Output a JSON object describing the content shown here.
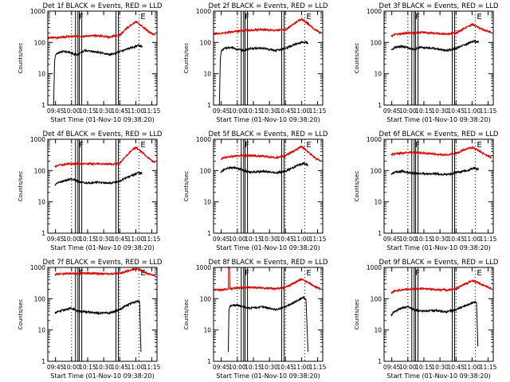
{
  "chart_data": [
    {
      "type": "line",
      "title": "Det 1f BLACK = Events, RED = LLD",
      "xlabel": "Start Time (01-Nov-10 09:38:20)",
      "ylabel": "Counts/sec",
      "yscale": "log",
      "ylim": [
        1,
        1000
      ],
      "xlim": [
        9.63,
        11.33
      ],
      "x_ticks": [
        "09:45",
        "10:00",
        "10:15",
        "10:30",
        "10:45",
        "11:00",
        "11:15"
      ],
      "y_ticks": [
        "1",
        "10",
        "100",
        "1000"
      ],
      "vlines_dotted": [
        10.0,
        10.75,
        11.05
      ],
      "vlines_double": [
        10.08,
        10.14,
        10.71
      ],
      "markers": [
        {
          "label": "F",
          "x": 10.09
        },
        {
          "label": "E",
          "x": 11.05
        }
      ],
      "series": [
        {
          "color": "#e00000",
          "x": [
            9.63,
            9.8,
            10.0,
            10.2,
            10.4,
            10.6,
            10.75,
            10.9,
            11.0,
            11.1,
            11.2,
            11.3
          ],
          "y": [
            140,
            145,
            155,
            160,
            165,
            150,
            175,
            330,
            460,
            330,
            220,
            170
          ]
        },
        {
          "color": "#000000",
          "x": [
            9.72,
            9.735,
            9.75,
            9.8,
            9.9,
            10.0,
            10.1,
            10.2,
            10.4,
            10.6,
            10.75,
            10.85,
            10.95,
            11.03,
            11.1
          ],
          "y": [
            1,
            25,
            40,
            48,
            52,
            45,
            40,
            55,
            50,
            40,
            50,
            60,
            70,
            80,
            75
          ]
        }
      ]
    },
    {
      "type": "line",
      "title": "Det 2f BLACK = Events, RED = LLD",
      "xlabel": "Start Time (01-Nov-10 09:38:20)",
      "ylabel": "Counts/sec",
      "yscale": "log",
      "ylim": [
        1,
        1000
      ],
      "xlim": [
        9.63,
        11.33
      ],
      "x_ticks": [
        "09:45",
        "10:00",
        "10:15",
        "10:30",
        "10:45",
        "11:00",
        "11:15"
      ],
      "y_ticks": [
        "1",
        "10",
        "100",
        "1000"
      ],
      "vlines_dotted": [
        10.0,
        10.75,
        11.05
      ],
      "vlines_double": [
        10.08,
        10.14,
        10.71
      ],
      "markers": [
        {
          "label": "F",
          "x": 10.09
        },
        {
          "label": "E",
          "x": 11.05
        }
      ],
      "series": [
        {
          "color": "#e00000",
          "x": [
            9.63,
            9.8,
            10.0,
            10.2,
            10.4,
            10.6,
            10.75,
            10.9,
            11.0,
            11.1,
            11.2,
            11.3
          ],
          "y": [
            190,
            200,
            230,
            250,
            260,
            240,
            260,
            420,
            560,
            400,
            260,
            200
          ]
        },
        {
          "color": "#000000",
          "x": [
            9.72,
            9.735,
            9.75,
            9.8,
            9.9,
            10.0,
            10.1,
            10.2,
            10.4,
            10.6,
            10.75,
            10.85,
            10.95,
            11.03,
            11.1
          ],
          "y": [
            1,
            30,
            55,
            65,
            70,
            60,
            55,
            65,
            65,
            55,
            65,
            80,
            95,
            105,
            95
          ]
        }
      ]
    },
    {
      "type": "line",
      "title": "Det 3f BLACK = Events, RED = LLD",
      "xlabel": "Start Time (01-Nov-10 09:38:20)",
      "ylabel": "Counts/sec",
      "yscale": "log",
      "ylim": [
        1,
        1000
      ],
      "xlim": [
        9.63,
        11.33
      ],
      "x_ticks": [
        "09:45",
        "10:00",
        "10:15",
        "10:30",
        "10:45",
        "11:00",
        "11:15"
      ],
      "y_ticks": [
        "1",
        "10",
        "100",
        "1000"
      ],
      "vlines_dotted": [
        10.0,
        10.75,
        11.05
      ],
      "vlines_double": [
        10.08,
        10.14,
        10.71
      ],
      "markers": [
        {
          "label": "F",
          "x": 10.09
        },
        {
          "label": "E",
          "x": 11.05
        }
      ],
      "series": [
        {
          "color": "#e00000",
          "x": [
            9.74,
            9.8,
            10.0,
            10.2,
            10.4,
            10.6,
            10.75,
            10.9,
            11.0,
            11.1,
            11.2,
            11.3
          ],
          "y": [
            150,
            180,
            200,
            210,
            200,
            185,
            200,
            300,
            380,
            300,
            240,
            210
          ]
        },
        {
          "color": "#000000",
          "x": [
            9.74,
            9.8,
            9.9,
            10.0,
            10.1,
            10.2,
            10.4,
            10.6,
            10.75,
            10.85,
            10.95,
            11.03,
            11.1
          ],
          "y": [
            55,
            70,
            75,
            68,
            60,
            70,
            65,
            55,
            65,
            80,
            95,
            110,
            100
          ]
        }
      ]
    },
    {
      "type": "line",
      "title": "Det 4f BLACK = Events, RED = LLD",
      "xlabel": "Start Time (01-Nov-10 09:38:20)",
      "ylabel": "Counts/sec",
      "yscale": "log",
      "ylim": [
        1,
        1000
      ],
      "xlim": [
        9.63,
        11.33
      ],
      "x_ticks": [
        "09:45",
        "10:00",
        "10:15",
        "10:30",
        "10:45",
        "11:00",
        "11:15"
      ],
      "y_ticks": [
        "1",
        "10",
        "100",
        "1000"
      ],
      "vlines_dotted": [
        10.0,
        10.75,
        11.05
      ],
      "vlines_double": [
        10.08,
        10.14,
        10.71
      ],
      "markers": [
        {
          "label": "F",
          "x": 10.09
        },
        {
          "label": "E",
          "x": 11.05
        }
      ],
      "series": [
        {
          "color": "#e00000",
          "x": [
            9.74,
            9.8,
            10.0,
            10.2,
            10.4,
            10.6,
            10.75,
            10.9,
            11.0,
            11.1,
            11.2,
            11.3
          ],
          "y": [
            130,
            150,
            165,
            165,
            165,
            160,
            170,
            380,
            560,
            380,
            250,
            180
          ]
        },
        {
          "color": "#000000",
          "x": [
            9.74,
            9.8,
            9.9,
            10.0,
            10.1,
            10.2,
            10.4,
            10.6,
            10.75,
            10.85,
            10.95,
            11.03,
            11.1
          ],
          "y": [
            35,
            42,
            48,
            55,
            45,
            40,
            42,
            40,
            45,
            60,
            70,
            85,
            80
          ]
        }
      ]
    },
    {
      "type": "line",
      "title": "Det 5f BLACK = Events, RED = LLD",
      "xlabel": "Start Time (01-Nov-10 09:38:20)",
      "ylabel": "Counts/sec",
      "yscale": "log",
      "ylim": [
        1,
        1000
      ],
      "xlim": [
        9.63,
        11.33
      ],
      "x_ticks": [
        "09:45",
        "10:00",
        "10:15",
        "10:30",
        "10:45",
        "11:00",
        "11:15"
      ],
      "y_ticks": [
        "1",
        "10",
        "100",
        "1000"
      ],
      "vlines_dotted": [
        10.0,
        10.75,
        11.05
      ],
      "vlines_double": [
        10.08,
        10.14,
        10.71
      ],
      "markers": [
        {
          "label": "F",
          "x": 10.09
        },
        {
          "label": "E",
          "x": 11.05
        }
      ],
      "series": [
        {
          "color": "#e00000",
          "x": [
            9.74,
            9.8,
            10.0,
            10.2,
            10.4,
            10.6,
            10.75,
            10.9,
            11.0,
            11.1,
            11.2,
            11.3
          ],
          "y": [
            240,
            260,
            300,
            300,
            290,
            260,
            300,
            450,
            600,
            400,
            260,
            200
          ]
        },
        {
          "color": "#000000",
          "x": [
            9.74,
            9.8,
            9.9,
            10.0,
            10.1,
            10.2,
            10.4,
            10.6,
            10.75,
            10.85,
            10.95,
            11.03,
            11.1
          ],
          "y": [
            90,
            110,
            125,
            120,
            100,
            90,
            95,
            85,
            95,
            120,
            150,
            170,
            150
          ]
        }
      ]
    },
    {
      "type": "line",
      "title": "Det 6f BLACK = Events, RED = LLD",
      "xlabel": "Start Time (01-Nov-10 09:38:20)",
      "ylabel": "Counts/sec",
      "yscale": "log",
      "ylim": [
        1,
        1000
      ],
      "xlim": [
        9.63,
        11.33
      ],
      "x_ticks": [
        "09:45",
        "10:00",
        "10:15",
        "10:30",
        "10:45",
        "11:00",
        "11:15"
      ],
      "y_ticks": [
        "1",
        "10",
        "100",
        "1000"
      ],
      "vlines_dotted": [
        10.0,
        10.75,
        11.05
      ],
      "vlines_double": [
        10.08,
        10.14,
        10.71
      ],
      "markers": [
        {
          "label": "F",
          "x": 10.09
        },
        {
          "label": "E",
          "x": 11.05
        }
      ],
      "series": [
        {
          "color": "#e00000",
          "x": [
            9.74,
            9.8,
            10.0,
            10.2,
            10.4,
            10.6,
            10.75,
            10.9,
            11.0,
            11.1,
            11.2,
            11.3
          ],
          "y": [
            330,
            340,
            380,
            370,
            340,
            320,
            360,
            480,
            560,
            430,
            330,
            260
          ]
        },
        {
          "color": "#000000",
          "x": [
            9.74,
            9.8,
            9.9,
            10.0,
            10.1,
            10.2,
            10.4,
            10.6,
            10.75,
            10.85,
            10.95,
            11.03,
            11.1
          ],
          "y": [
            75,
            90,
            95,
            88,
            80,
            80,
            80,
            75,
            85,
            95,
            105,
            120,
            110
          ]
        }
      ]
    },
    {
      "type": "line",
      "title": "Det 7f BLACK = Events, RED = LLD",
      "xlabel": "Start Time (01-Nov-10 09:38:20)",
      "ylabel": "Counts/sec",
      "yscale": "log",
      "ylim": [
        1,
        1000
      ],
      "xlim": [
        9.63,
        11.33
      ],
      "x_ticks": [
        "09:45",
        "10:00",
        "10:15",
        "10:30",
        "10:45",
        "11:00",
        "11:15"
      ],
      "y_ticks": [
        "1",
        "10",
        "100",
        "1000"
      ],
      "vlines_dotted": [
        10.0,
        10.75,
        11.05
      ],
      "vlines_double": [
        10.08,
        10.14,
        10.71
      ],
      "markers": [
        {
          "label": "F",
          "x": 10.09
        },
        {
          "label": "E",
          "x": 11.05
        }
      ],
      "series": [
        {
          "color": "#e00000",
          "x": [
            9.74,
            9.8,
            10.0,
            10.2,
            10.4,
            10.6,
            10.75,
            10.9,
            11.0,
            11.05,
            11.1,
            11.2,
            11.3
          ],
          "y": [
            600,
            620,
            640,
            650,
            640,
            620,
            650,
            800,
            900,
            850,
            760,
            620,
            560
          ]
        },
        {
          "color": "#000000",
          "x": [
            9.74,
            9.8,
            9.9,
            10.0,
            10.1,
            10.2,
            10.4,
            10.6,
            10.75,
            10.85,
            10.95,
            11.03,
            11.06,
            11.08
          ],
          "y": [
            35,
            40,
            45,
            50,
            40,
            38,
            35,
            35,
            45,
            60,
            75,
            85,
            80,
            2
          ]
        }
      ]
    },
    {
      "type": "line",
      "title": "Det 8f BLACK = Events, RED = LLD",
      "xlabel": "Start Time (01-Nov-10 09:38:20)",
      "ylabel": "Counts/sec",
      "yscale": "log",
      "ylim": [
        1,
        1000
      ],
      "xlim": [
        9.63,
        11.33
      ],
      "x_ticks": [
        "09:45",
        "10:00",
        "10:15",
        "10:30",
        "10:45",
        "11:00",
        "11:15"
      ],
      "y_ticks": [
        "1",
        "10",
        "100",
        "1000"
      ],
      "vlines_dotted": [
        10.0,
        10.75,
        11.05
      ],
      "vlines_double": [
        10.08,
        10.14,
        10.71
      ],
      "markers": [
        {
          "label": "F",
          "x": 10.09
        },
        {
          "label": "E",
          "x": 11.05
        }
      ],
      "series": [
        {
          "color": "#e00000",
          "x": [
            9.63,
            9.8,
            9.86,
            9.865,
            9.88,
            9.885,
            10.0,
            10.2,
            10.4,
            10.6,
            10.75,
            10.9,
            11.0,
            11.1,
            11.2,
            11.3
          ],
          "y": [
            190,
            200,
            200,
            1000,
            1000,
            210,
            220,
            230,
            220,
            210,
            230,
            330,
            420,
            330,
            250,
            200
          ]
        },
        {
          "color": "#000000",
          "x": [
            9.86,
            9.87,
            9.88,
            9.9,
            10.0,
            10.1,
            10.2,
            10.4,
            10.6,
            10.75,
            10.85,
            10.95,
            11.03,
            11.07,
            11.1
          ],
          "y": [
            2,
            40,
            55,
            60,
            62,
            55,
            50,
            55,
            45,
            55,
            70,
            90,
            110,
            95,
            2
          ]
        }
      ]
    },
    {
      "type": "line",
      "title": "Det 9f BLACK = Events, RED = LLD",
      "xlabel": "Start Time (01-Nov-10 09:38:20)",
      "ylabel": "Counts/sec",
      "yscale": "log",
      "ylim": [
        1,
        1000
      ],
      "xlim": [
        9.63,
        11.33
      ],
      "x_ticks": [
        "09:45",
        "10:00",
        "10:15",
        "10:30",
        "10:45",
        "11:00",
        "11:15"
      ],
      "y_ticks": [
        "1",
        "10",
        "100",
        "1000"
      ],
      "vlines_dotted": [
        10.0,
        10.75,
        11.05
      ],
      "vlines_double": [
        10.08,
        10.14,
        10.71
      ],
      "markers": [
        {
          "label": "F",
          "x": 10.09
        },
        {
          "label": "E",
          "x": 11.05
        }
      ],
      "series": [
        {
          "color": "#e00000",
          "x": [
            9.74,
            9.8,
            10.0,
            10.2,
            10.4,
            10.6,
            10.75,
            10.9,
            11.0,
            11.1,
            11.2,
            11.3
          ],
          "y": [
            150,
            180,
            200,
            210,
            200,
            190,
            210,
            300,
            380,
            320,
            260,
            210
          ]
        },
        {
          "color": "#000000",
          "x": [
            9.74,
            9.8,
            9.9,
            10.0,
            10.1,
            10.2,
            10.4,
            10.6,
            10.75,
            10.85,
            10.95,
            11.03,
            11.07,
            11.09
          ],
          "y": [
            30,
            40,
            50,
            55,
            45,
            40,
            42,
            38,
            45,
            55,
            65,
            80,
            75,
            3
          ]
        }
      ]
    }
  ]
}
